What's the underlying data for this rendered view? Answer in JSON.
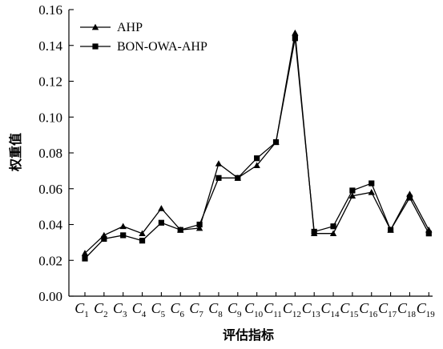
{
  "chart_data": {
    "type": "line",
    "ylabel": "权重值",
    "xlabel": "评估指标",
    "categories": [
      "1",
      "2",
      "3",
      "4",
      "5",
      "6",
      "7",
      "8",
      "9",
      "10",
      "11",
      "12",
      "13",
      "14",
      "15",
      "16",
      "17",
      "18",
      "19"
    ],
    "category_prefix": "C",
    "ylim": [
      0,
      0.16
    ],
    "yticks": [
      "0.00",
      "0.02",
      "0.04",
      "0.06",
      "0.08",
      "0.10",
      "0.12",
      "0.14",
      "0.16"
    ],
    "legend_position": "top-left",
    "series": [
      {
        "name": "AHP",
        "marker": "triangle",
        "values": [
          0.024,
          0.034,
          0.039,
          0.035,
          0.049,
          0.037,
          0.038,
          0.074,
          0.066,
          0.073,
          0.086,
          0.147,
          0.035,
          0.035,
          0.056,
          0.058,
          0.037,
          0.057,
          0.037
        ]
      },
      {
        "name": "BON-OWA-AHP",
        "marker": "square",
        "values": [
          0.021,
          0.032,
          0.034,
          0.031,
          0.041,
          0.037,
          0.04,
          0.066,
          0.066,
          0.077,
          0.086,
          0.144,
          0.036,
          0.039,
          0.059,
          0.063,
          0.037,
          0.055,
          0.035
        ]
      }
    ]
  }
}
